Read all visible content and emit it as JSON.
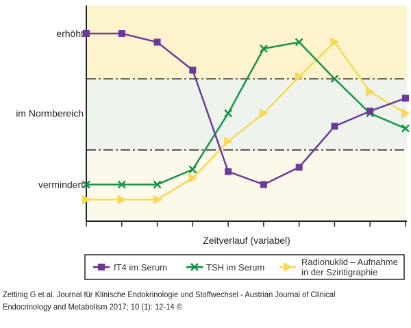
{
  "chart_data": {
    "type": "line",
    "title": "",
    "xlabel": "Zeitverlauf (variabel)",
    "ylabel": "",
    "x": [
      1,
      2,
      3,
      4,
      5,
      6,
      7,
      8,
      9,
      10
    ],
    "ylim": [
      0,
      100
    ],
    "yticks": [
      {
        "value": 87,
        "label": "erhöht"
      },
      {
        "value": 50,
        "label": "im Normbereich"
      },
      {
        "value": 17,
        "label": "vermindert"
      }
    ],
    "normal_range": [
      33,
      66
    ],
    "bands": {
      "high": "#fdf3cd",
      "normal": "#eef3ee",
      "low": "#fdf9ea"
    },
    "legend_position": "bottom",
    "series": [
      {
        "name": "fT4 im Serum",
        "color": "#6b3a98",
        "marker": "square",
        "values": [
          87,
          87,
          83,
          70,
          23,
          17,
          25,
          44,
          51,
          57
        ]
      },
      {
        "name": "TSH im Serum",
        "color": "#139446",
        "marker": "x",
        "values": [
          17,
          17,
          17,
          24,
          50,
          80,
          83,
          66,
          50,
          43
        ]
      },
      {
        "name": "Radionuklid – Aufnahme in der Szintigraphie",
        "name_lines": [
          "Radionuklid – Aufnahme",
          "in der Szintigraphie"
        ],
        "color": "#f6d956",
        "marker": "triangle",
        "values": [
          10,
          10,
          10,
          20,
          37,
          50,
          67,
          83,
          60,
          50
        ]
      }
    ]
  },
  "citation": {
    "line1": "Zettinig G et al. Journal für Klinische Endokrinologie und Stoffwechsel - Austrian Journal of Clinical",
    "line2": "Endocrinology and Metabolism 2017; 10 (1): 12-14 ©"
  }
}
